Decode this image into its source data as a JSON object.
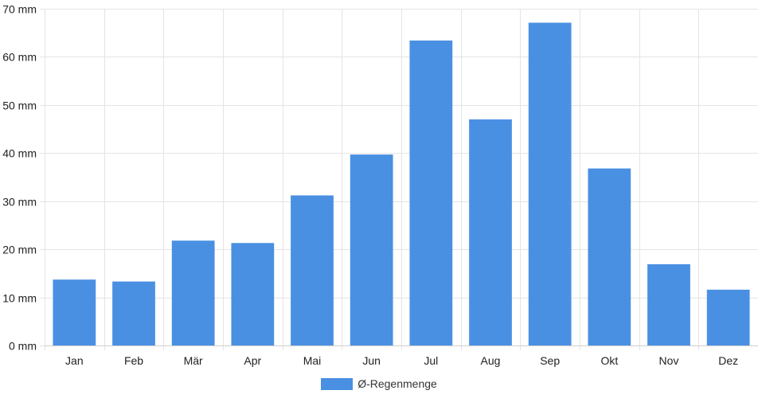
{
  "chart_data": {
    "type": "bar",
    "categories": [
      "Jan",
      "Feb",
      "Mär",
      "Apr",
      "Mai",
      "Jun",
      "Jul",
      "Aug",
      "Sep",
      "Okt",
      "Nov",
      "Dez"
    ],
    "series": [
      {
        "name": "Ø-Regenmenge",
        "values": [
          13.7,
          13.3,
          21.8,
          21.3,
          31.2,
          39.7,
          63.4,
          47.0,
          67.1,
          36.8,
          16.9,
          11.6
        ],
        "color": "#4a90e2"
      }
    ],
    "y_unit": "mm",
    "ylim": [
      0,
      70
    ],
    "y_ticks": [
      0,
      10,
      20,
      30,
      40,
      50,
      60,
      70
    ],
    "y_tick_labels": [
      "0 mm",
      "10 mm",
      "20 mm",
      "30 mm",
      "40 mm",
      "50 mm",
      "60 mm",
      "70 mm"
    ],
    "grid": true,
    "legend_position": "bottom"
  }
}
